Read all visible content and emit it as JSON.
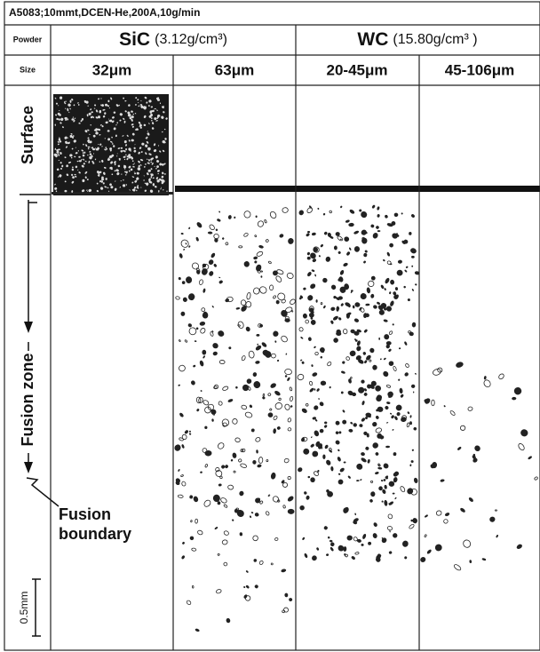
{
  "header": {
    "title": "A5083;10mmt,DCEN-He,200A,10g/min"
  },
  "table": {
    "row_labels": [
      "Powder",
      "Size"
    ],
    "groups": [
      {
        "name": "SiC",
        "density": "(3.12g/cm³)"
      },
      {
        "name": "WC",
        "density": "(15.80g/cm³ )"
      }
    ],
    "sizes": [
      "32μm",
      "63μm",
      "20-45μm",
      "45-106μm"
    ]
  },
  "annotations": {
    "surface": "Surface",
    "fusion_zone": "Fusion zone",
    "fusion_boundary": [
      "Fusion",
      "boundary"
    ],
    "scale_bar": "0.5mm"
  }
}
